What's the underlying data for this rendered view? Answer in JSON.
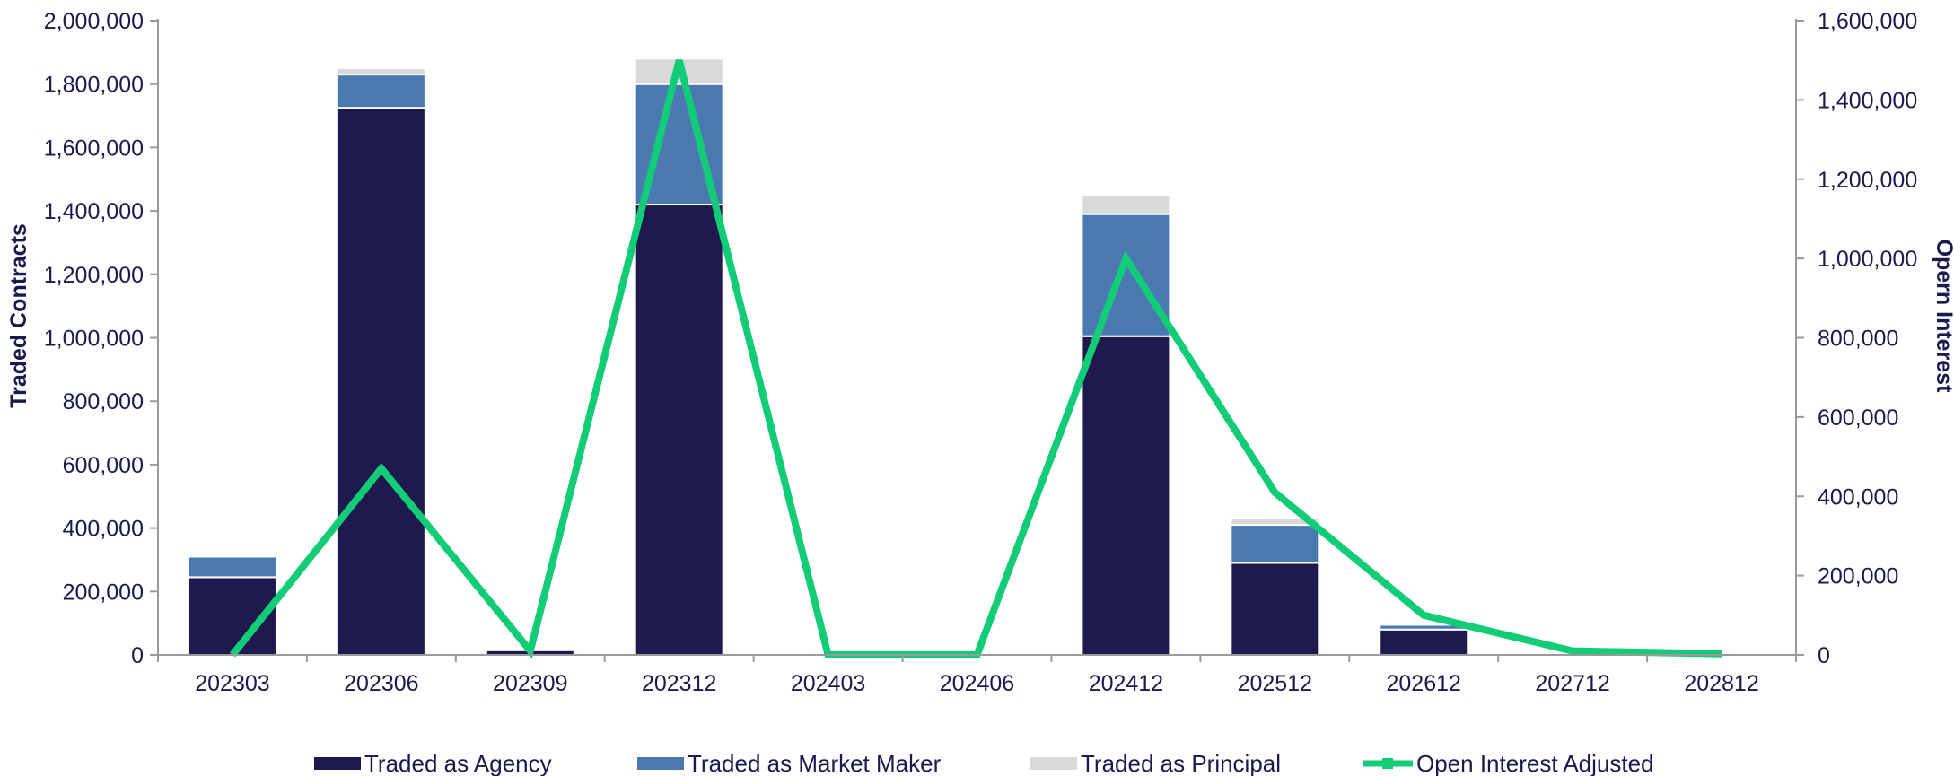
{
  "chart_data": {
    "type": "bar",
    "stacked": true,
    "categories": [
      "202303",
      "202306",
      "202309",
      "202312",
      "202403",
      "202406",
      "202412",
      "202512",
      "202612",
      "202712",
      "202812"
    ],
    "series": [
      {
        "name": "Traded as Agency",
        "color": "#1f1a4e",
        "axis": "left",
        "values": [
          245000,
          1725000,
          15000,
          1420000,
          0,
          0,
          1005000,
          290000,
          80000,
          0,
          0
        ]
      },
      {
        "name": "Traded as Market Maker",
        "color": "#4a78b0",
        "axis": "left",
        "values": [
          65000,
          105000,
          0,
          380000,
          0,
          0,
          385000,
          120000,
          15000,
          0,
          0
        ]
      },
      {
        "name": "Traded as Principal",
        "color": "#d9d9d9",
        "axis": "left",
        "values": [
          5000,
          20000,
          5000,
          80000,
          2000,
          0,
          60000,
          20000,
          5000,
          2000,
          2000
        ]
      },
      {
        "name": "Open Interest Adjusted",
        "color": "#13cc78",
        "axis": "right",
        "type": "line",
        "values": [
          0,
          470000,
          10000,
          1500000,
          0,
          0,
          1000000,
          410000,
          100000,
          10000,
          3000
        ]
      }
    ],
    "left_axis": {
      "label": "Traded Contracts",
      "range": [
        0,
        2000000
      ],
      "ticks": [
        "0",
        "200,000",
        "400,000",
        "600,000",
        "800,000",
        "1,000,000",
        "1,200,000",
        "1,400,000",
        "1,600,000",
        "1,800,000",
        "2,000,000"
      ]
    },
    "right_axis": {
      "label": "Opern Interest",
      "range": [
        0,
        1600000
      ],
      "ticks": [
        "0",
        "200,000",
        "400,000",
        "600,000",
        "800,000",
        "1,000,000",
        "1,200,000",
        "1,400,000",
        "1,600,000"
      ]
    },
    "grid": false,
    "legend_position": "bottom"
  }
}
